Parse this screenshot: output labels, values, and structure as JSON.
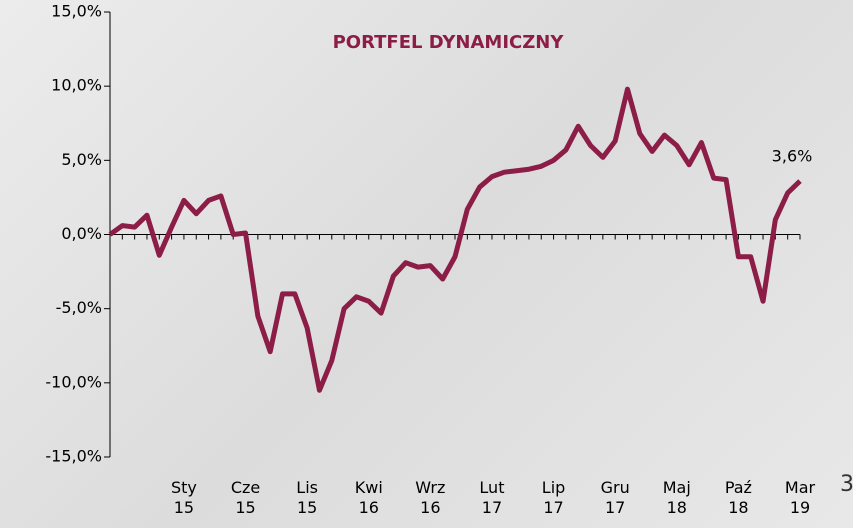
{
  "chart_data": {
    "type": "line",
    "title": "PORTFEL DYNAMICZNY",
    "categories": [
      null,
      null,
      null,
      null,
      null,
      null,
      "Sty 15",
      null,
      null,
      null,
      null,
      "Cze 15",
      null,
      null,
      null,
      null,
      "Lis 15",
      null,
      null,
      null,
      null,
      "Kwi 16",
      null,
      null,
      null,
      null,
      "Wrz 16",
      null,
      null,
      null,
      null,
      "Lut 17",
      null,
      null,
      null,
      null,
      "Lip 17",
      null,
      null,
      null,
      null,
      "Gru 17",
      null,
      null,
      null,
      null,
      "Maj 18",
      null,
      null,
      null,
      null,
      "Paź 18",
      null,
      null,
      null,
      null,
      "Mar 19"
    ],
    "series": [
      {
        "name": "PORTFEL DYNAMICZNY",
        "color": "#8c1d47",
        "values": [
          0.0,
          0.6,
          0.5,
          1.3,
          -1.4,
          0.5,
          2.3,
          1.4,
          2.3,
          2.6,
          0.0,
          0.1,
          -5.5,
          -7.9,
          -4.0,
          -4.0,
          -6.3,
          -10.5,
          -8.5,
          -5.0,
          -4.2,
          -4.5,
          -5.3,
          -2.8,
          -1.9,
          -2.2,
          -2.1,
          -3.0,
          -1.5,
          1.7,
          3.2,
          3.9,
          4.2,
          4.3,
          4.4,
          4.6,
          5.0,
          5.7,
          7.3,
          6.0,
          5.2,
          6.3,
          9.8,
          6.8,
          5.6,
          6.7,
          6.0,
          4.7,
          6.2,
          3.8,
          3.7,
          -1.5,
          -1.5,
          -4.5,
          1.0,
          2.8,
          3.6
        ]
      }
    ],
    "annotation": {
      "index": 56,
      "label": "3,6%"
    },
    "page_number": "3",
    "ylim": [
      -15,
      15
    ],
    "yticks": [
      {
        "value": -15,
        "label": "-15,0%"
      },
      {
        "value": -10,
        "label": "-10,0%"
      },
      {
        "value": -5,
        "label": "-5,0%"
      },
      {
        "value": 0,
        "label": "0,0%"
      },
      {
        "value": 5,
        "label": "5,0%"
      },
      {
        "value": 10,
        "label": "10,0%"
      },
      {
        "value": 15,
        "label": "15,0%"
      }
    ]
  }
}
